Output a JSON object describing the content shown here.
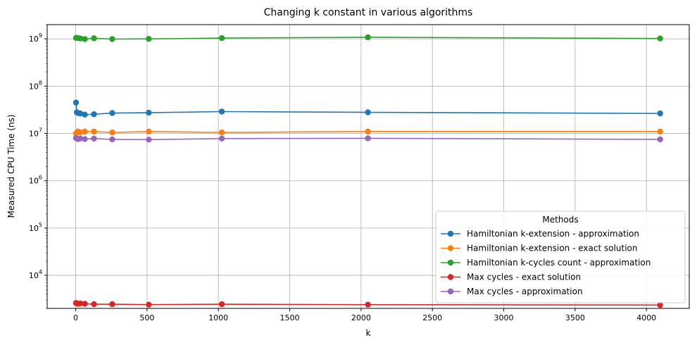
{
  "chart_data": {
    "type": "line",
    "title": "Changing k constant in various algorithms",
    "xlabel": "k",
    "ylabel": "Measured CPU Time (ns)",
    "xlim": [
      -200,
      4300
    ],
    "ylim": [
      2000,
      2000000000
    ],
    "yscale": "log",
    "grid": true,
    "x_ticks": [
      0,
      500,
      1000,
      1500,
      2000,
      2500,
      3000,
      3500,
      4000
    ],
    "y_ticks": [
      {
        "value": 10000,
        "base": "10",
        "exp": "4"
      },
      {
        "value": 100000,
        "base": "10",
        "exp": "5"
      },
      {
        "value": 1000000,
        "base": "10",
        "exp": "6"
      },
      {
        "value": 10000000,
        "base": "10",
        "exp": "7"
      },
      {
        "value": 100000000,
        "base": "10",
        "exp": "8"
      },
      {
        "value": 1000000000,
        "base": "10",
        "exp": "9"
      }
    ],
    "legend": {
      "title": "Methods",
      "placement": "lower-right"
    },
    "x": [
      2,
      8,
      16,
      32,
      64,
      128,
      256,
      512,
      1024,
      2048,
      4096
    ],
    "series": [
      {
        "name": "Hamiltonian k-extension - approximation",
        "color": "#1f77b4",
        "values": [
          45000000,
          28000000,
          27000000,
          26500000,
          25000000,
          25500000,
          27000000,
          27500000,
          29000000,
          28000000,
          26500000
        ]
      },
      {
        "name": "Hamiltonian k-extension - exact solution",
        "color": "#ff7f0e",
        "values": [
          10000000,
          10500000,
          11000000,
          10500000,
          11000000,
          11000000,
          10500000,
          11000000,
          10500000,
          11000000,
          11000000
        ]
      },
      {
        "name": "Hamiltonian k-cycles count - approximation",
        "color": "#2ca02c",
        "values": [
          1050000000,
          1050000000,
          1040000000,
          1020000000,
          990000000,
          1030000000,
          990000000,
          1000000000,
          1040000000,
          1080000000,
          1020000000
        ]
      },
      {
        "name": "Max cycles - exact solution",
        "color": "#d62728",
        "values": [
          2600,
          2550,
          2500,
          2550,
          2500,
          2450,
          2450,
          2400,
          2450,
          2400,
          2350
        ]
      },
      {
        "name": "Max cycles - approximation",
        "color": "#9467bd",
        "values": [
          8000000,
          7800000,
          7600000,
          7800000,
          7600000,
          7800000,
          7500000,
          7400000,
          7800000,
          7900000,
          7500000
        ]
      }
    ]
  }
}
